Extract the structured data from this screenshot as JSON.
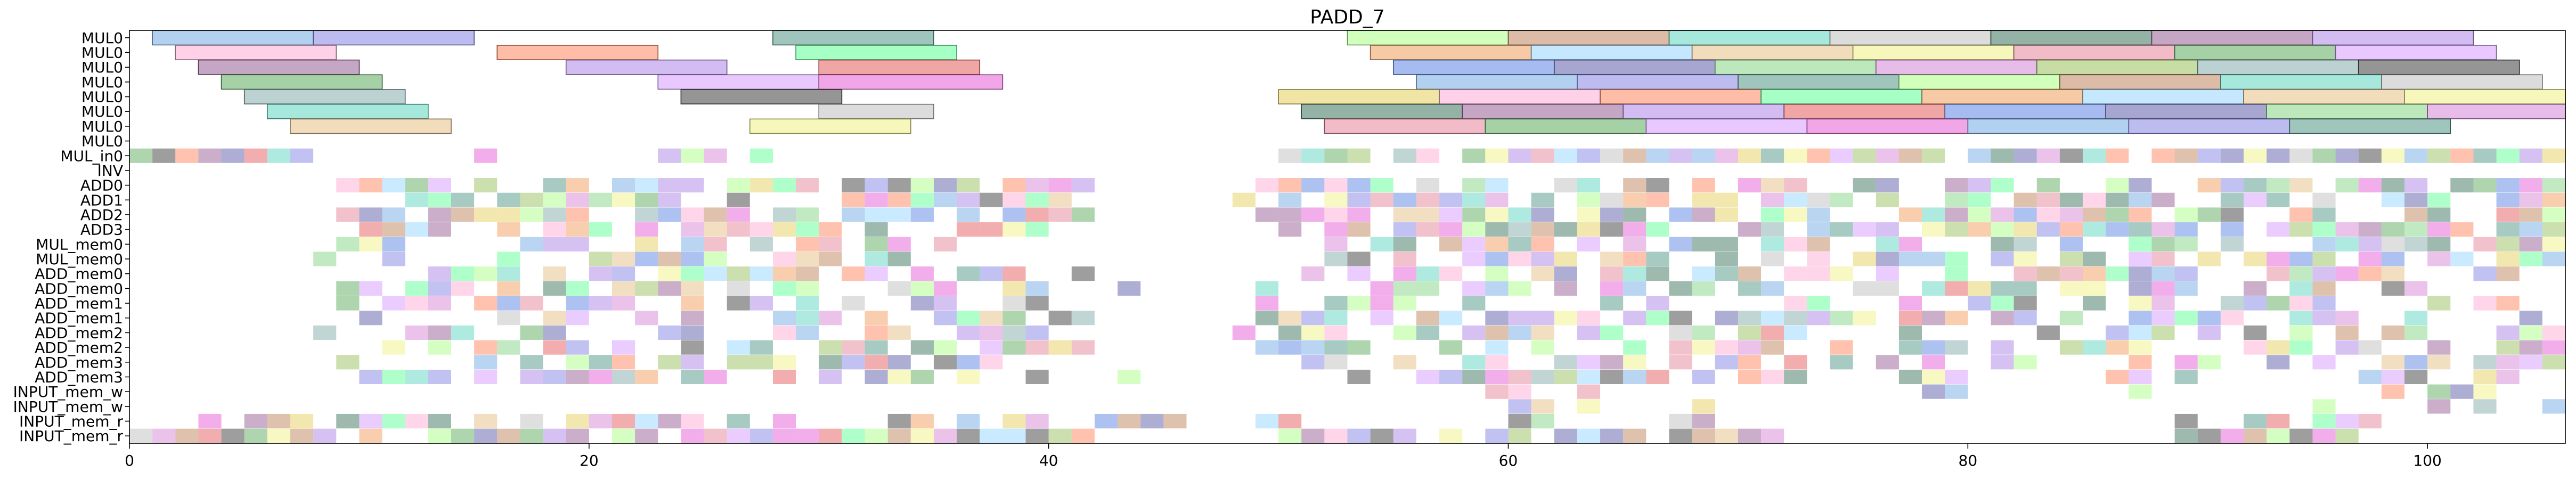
{
  "chart_data": {
    "type": "gantt",
    "title": "PADD_7",
    "xlabel": "",
    "ylabel": "",
    "xlim": [
      0,
      106
    ],
    "xticks": [
      0,
      20,
      40,
      60,
      80,
      100
    ],
    "grid": false,
    "legend": "none",
    "bar_alpha": 0.6,
    "rows": [
      "MUL0",
      "MUL0",
      "MUL0",
      "MUL0",
      "MUL0",
      "MUL0",
      "MUL0",
      "MUL0",
      "MUL_in0",
      "INV",
      "ADD0",
      "ADD1",
      "ADD2",
      "ADD3",
      "MUL_mem0",
      "MUL_mem0",
      "ADD_mem0",
      "ADD_mem0",
      "ADD_mem1",
      "ADD_mem1",
      "ADD_mem2",
      "ADD_mem2",
      "ADD_mem3",
      "ADD_mem3",
      "INPUT_mem_w",
      "INPUT_mem_w",
      "INPUT_mem_r",
      "INPUT_mem_r"
    ],
    "palette": [
      "#7fb3e8",
      "#8fd98f",
      "#e88fa3",
      "#b58fe8",
      "#f2a66b",
      "#6bd9c4",
      "#e8d36b",
      "#8f8fe8",
      "#d98fd9",
      "#6bb36b",
      "#e86b6b",
      "#9fd9ff",
      "#c4c4c4",
      "#ffb3d9",
      "#5f9e8f",
      "#a3c46b",
      "#d9a3ff",
      "#6b8fe8",
      "#e8c48f",
      "#4f7f6b",
      "#ff8f6b",
      "#b3ff8f",
      "#8fb3b3",
      "#e86bd9",
      "#6b6bb3",
      "#f2f28f",
      "#9e6b9e",
      "#6bff9e",
      "#c48f6b",
      "#4f4f4f"
    ],
    "bars": [
      {
        "row": 0,
        "start": 1,
        "end": 8
      },
      {
        "row": 0,
        "start": 8,
        "end": 15
      },
      {
        "row": 0,
        "start": 28,
        "end": 35
      },
      {
        "row": 0,
        "start": 53,
        "end": 60
      },
      {
        "row": 0,
        "start": 60,
        "end": 67
      },
      {
        "row": 0,
        "start": 67,
        "end": 74
      },
      {
        "row": 0,
        "start": 74,
        "end": 81
      },
      {
        "row": 0,
        "start": 81,
        "end": 88
      },
      {
        "row": 0,
        "start": 88,
        "end": 95
      },
      {
        "row": 0,
        "start": 95,
        "end": 102
      },
      {
        "row": 1,
        "start": 2,
        "end": 9
      },
      {
        "row": 1,
        "start": 16,
        "end": 23
      },
      {
        "row": 1,
        "start": 29,
        "end": 36
      },
      {
        "row": 1,
        "start": 54,
        "end": 61
      },
      {
        "row": 1,
        "start": 61,
        "end": 68
      },
      {
        "row": 1,
        "start": 68,
        "end": 75
      },
      {
        "row": 1,
        "start": 75,
        "end": 82
      },
      {
        "row": 1,
        "start": 82,
        "end": 89
      },
      {
        "row": 1,
        "start": 89,
        "end": 96
      },
      {
        "row": 1,
        "start": 96,
        "end": 103
      },
      {
        "row": 2,
        "start": 3,
        "end": 10
      },
      {
        "row": 2,
        "start": 19,
        "end": 26
      },
      {
        "row": 2,
        "start": 30,
        "end": 37
      },
      {
        "row": 2,
        "start": 55,
        "end": 62
      },
      {
        "row": 2,
        "start": 62,
        "end": 69
      },
      {
        "row": 2,
        "start": 69,
        "end": 76
      },
      {
        "row": 2,
        "start": 76,
        "end": 83
      },
      {
        "row": 2,
        "start": 83,
        "end": 90
      },
      {
        "row": 2,
        "start": 90,
        "end": 97
      },
      {
        "row": 2,
        "start": 97,
        "end": 104
      },
      {
        "row": 3,
        "start": 4,
        "end": 11
      },
      {
        "row": 3,
        "start": 23,
        "end": 30
      },
      {
        "row": 3,
        "start": 30,
        "end": 38
      },
      {
        "row": 3,
        "start": 56,
        "end": 63
      },
      {
        "row": 3,
        "start": 63,
        "end": 70
      },
      {
        "row": 3,
        "start": 70,
        "end": 77
      },
      {
        "row": 3,
        "start": 77,
        "end": 84
      },
      {
        "row": 3,
        "start": 84,
        "end": 91
      },
      {
        "row": 3,
        "start": 91,
        "end": 98
      },
      {
        "row": 3,
        "start": 98,
        "end": 105
      },
      {
        "row": 4,
        "start": 5,
        "end": 12
      },
      {
        "row": 4,
        "start": 24,
        "end": 31
      },
      {
        "row": 4,
        "start": 50,
        "end": 57
      },
      {
        "row": 4,
        "start": 57,
        "end": 64
      },
      {
        "row": 4,
        "start": 64,
        "end": 71
      },
      {
        "row": 4,
        "start": 71,
        "end": 78
      },
      {
        "row": 4,
        "start": 78,
        "end": 85
      },
      {
        "row": 4,
        "start": 85,
        "end": 92
      },
      {
        "row": 4,
        "start": 92,
        "end": 99
      },
      {
        "row": 4,
        "start": 99,
        "end": 106
      },
      {
        "row": 5,
        "start": 6,
        "end": 13
      },
      {
        "row": 5,
        "start": 30,
        "end": 35
      },
      {
        "row": 5,
        "start": 51,
        "end": 58
      },
      {
        "row": 5,
        "start": 58,
        "end": 65
      },
      {
        "row": 5,
        "start": 65,
        "end": 72
      },
      {
        "row": 5,
        "start": 72,
        "end": 79
      },
      {
        "row": 5,
        "start": 79,
        "end": 86
      },
      {
        "row": 5,
        "start": 86,
        "end": 93
      },
      {
        "row": 5,
        "start": 93,
        "end": 100
      },
      {
        "row": 5,
        "start": 100,
        "end": 106
      },
      {
        "row": 6,
        "start": 7,
        "end": 14
      },
      {
        "row": 6,
        "start": 27,
        "end": 34
      },
      {
        "row": 6,
        "start": 52,
        "end": 59
      },
      {
        "row": 6,
        "start": 59,
        "end": 66
      },
      {
        "row": 6,
        "start": 66,
        "end": 73
      },
      {
        "row": 6,
        "start": 73,
        "end": 80
      },
      {
        "row": 6,
        "start": 80,
        "end": 87
      },
      {
        "row": 6,
        "start": 87,
        "end": 94
      },
      {
        "row": 6,
        "start": 94,
        "end": 101
      }
    ],
    "dense_rows": [
      {
        "row": 8,
        "segments": [
          [
            0,
            8
          ],
          [
            15,
            16
          ],
          [
            22,
            26
          ],
          [
            27,
            28
          ],
          [
            49,
            106
          ]
        ],
        "fill": 0.85
      },
      {
        "row": 10,
        "segments": [
          [
            9,
            42
          ],
          [
            49,
            106
          ]
        ],
        "fill": 0.72
      },
      {
        "row": 11,
        "segments": [
          [
            9,
            44
          ],
          [
            48,
            106
          ]
        ],
        "fill": 0.72
      },
      {
        "row": 12,
        "segments": [
          [
            8,
            42
          ],
          [
            48,
            106
          ]
        ],
        "fill": 0.75
      },
      {
        "row": 13,
        "segments": [
          [
            9,
            40
          ],
          [
            50,
            106
          ]
        ],
        "fill": 0.72
      },
      {
        "row": 14,
        "segments": [
          [
            7,
            20
          ],
          [
            22,
            36
          ],
          [
            52,
            106
          ]
        ],
        "fill": 0.55
      },
      {
        "row": 15,
        "segments": [
          [
            8,
            34
          ],
          [
            52,
            106
          ]
        ],
        "fill": 0.65
      },
      {
        "row": 16,
        "segments": [
          [
            9,
            42
          ],
          [
            49,
            106
          ]
        ],
        "fill": 0.6
      },
      {
        "row": 17,
        "segments": [
          [
            9,
            44
          ],
          [
            49,
            106
          ]
        ],
        "fill": 0.55
      },
      {
        "row": 18,
        "segments": [
          [
            9,
            40
          ],
          [
            49,
            106
          ]
        ],
        "fill": 0.55
      },
      {
        "row": 19,
        "segments": [
          [
            10,
            42
          ],
          [
            49,
            106
          ]
        ],
        "fill": 0.55
      },
      {
        "row": 20,
        "segments": [
          [
            8,
            40
          ],
          [
            48,
            106
          ]
        ],
        "fill": 0.5
      },
      {
        "row": 21,
        "segments": [
          [
            10,
            42
          ],
          [
            49,
            106
          ]
        ],
        "fill": 0.6
      },
      {
        "row": 22,
        "segments": [
          [
            9,
            40
          ],
          [
            50,
            106
          ]
        ],
        "fill": 0.5
      },
      {
        "row": 23,
        "segments": [
          [
            10,
            44
          ],
          [
            51,
            106
          ]
        ],
        "fill": 0.55
      },
      {
        "row": 24,
        "segments": [
          [
            58,
            66
          ],
          [
            78,
            80
          ],
          [
            87,
            88
          ],
          [
            97,
            104
          ]
        ],
        "fill": 0.45
      },
      {
        "row": 25,
        "segments": [
          [
            59,
            74
          ],
          [
            92,
            106
          ]
        ],
        "fill": 0.3
      },
      {
        "row": 26,
        "segments": [
          [
            0,
            51
          ],
          [
            60,
            72
          ],
          [
            87,
            98
          ]
        ],
        "fill": 0.6
      },
      {
        "row": 27,
        "segments": [
          [
            0,
            42
          ],
          [
            50,
            56
          ],
          [
            57,
            72
          ],
          [
            89,
            98
          ]
        ],
        "fill": 0.85
      }
    ]
  }
}
